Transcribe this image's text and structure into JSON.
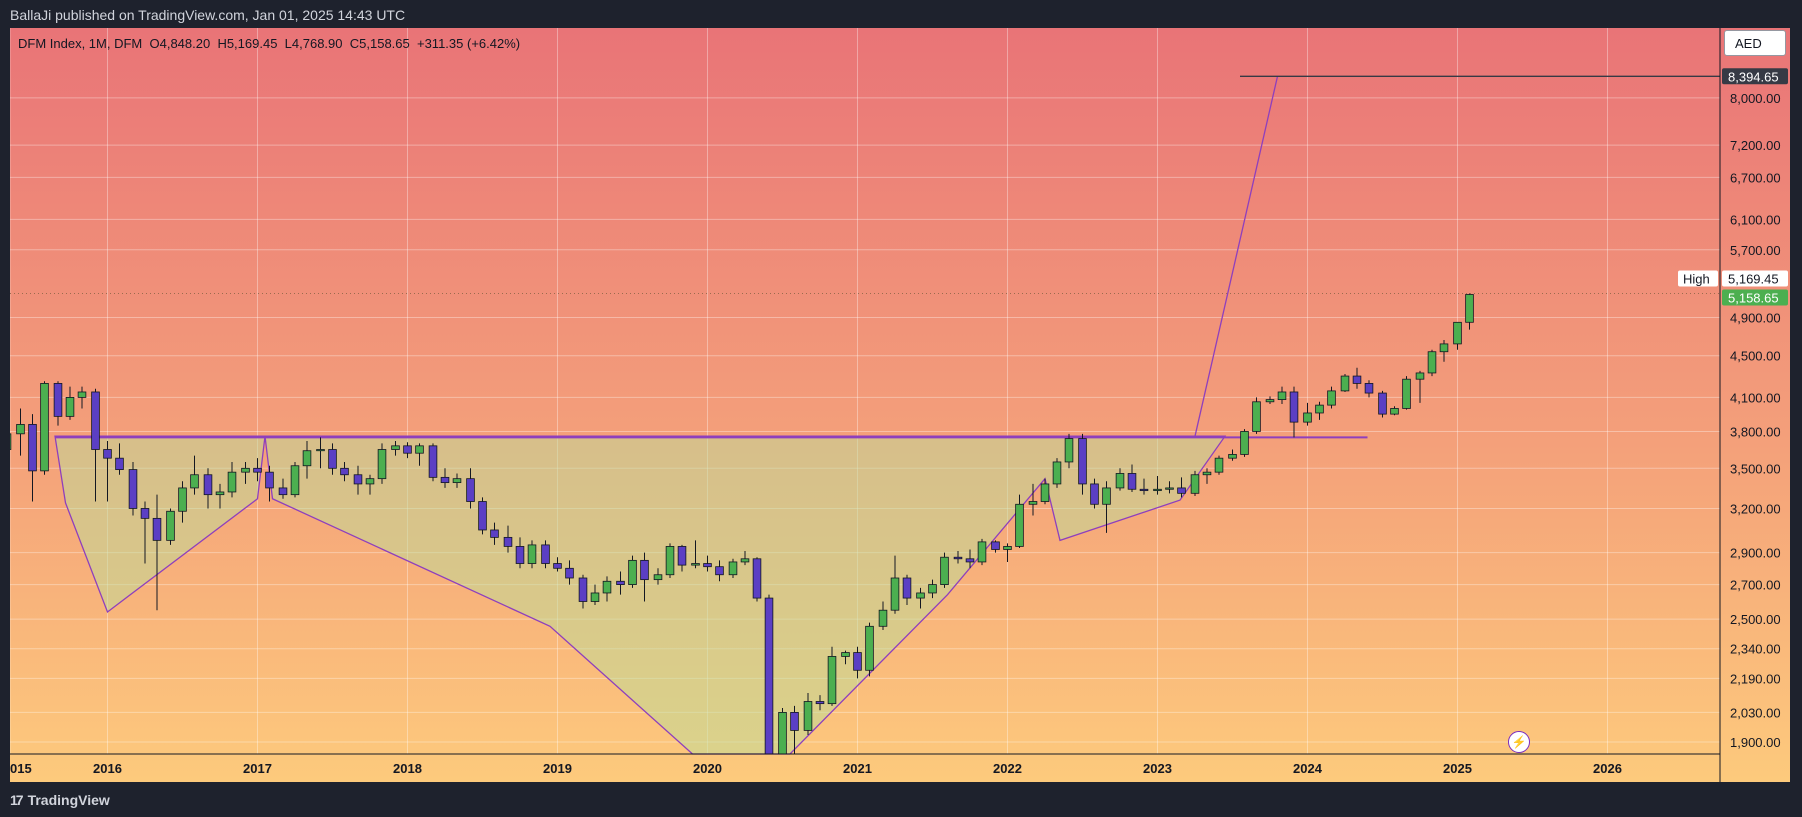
{
  "header": {
    "publisher_text": "BallaJi published on TradingView.com, Jan 01, 2025 14:43 UTC"
  },
  "legend": {
    "symbol": "DFM Index, 1M, DFM",
    "open": "O4,848.20",
    "high": "H5,169.45",
    "low": "L4,768.90",
    "close": "C5,158.65",
    "change": "+311.35 (+6.42%)"
  },
  "footer": {
    "brand": "TradingView",
    "logo_text": "17"
  },
  "currency": "AED",
  "chart_data": {
    "type": "candlestick",
    "interval": "1M",
    "x_ticks": [
      "015",
      "2016",
      "2017",
      "2018",
      "2019",
      "2020",
      "2021",
      "2022",
      "2023",
      "2024",
      "2025",
      "2026"
    ],
    "x_tick_values": [
      2015.35,
      2016,
      2017,
      2018,
      2019,
      2020,
      2021,
      2022,
      2023,
      2024,
      2025,
      2026
    ],
    "y_ticks": [
      "8,000.00",
      "7,200.00",
      "6,700.00",
      "6,100.00",
      "5,700.00",
      "4,900.00",
      "4,500.00",
      "4,100.00",
      "3,800.00",
      "3,500.00",
      "3,200.00",
      "2,900.00",
      "2,700.00",
      "2,500.00",
      "2,340.00",
      "2,190.00",
      "2,030.00",
      "1,900.00"
    ],
    "y_tick_values": [
      8000,
      7200,
      6700,
      6100,
      5700,
      4900,
      4500,
      4100,
      3800,
      3500,
      3200,
      2900,
      2700,
      2500,
      2340,
      2190,
      2030,
      1900
    ],
    "y_scale": "log",
    "y_range": [
      1850,
      9350
    ],
    "x_range": [
      2015.35,
      2026.75
    ],
    "price_tags": [
      {
        "label": "",
        "value": "8,394.65",
        "price": 8394.65,
        "bg": "#363a45",
        "fg": "#ffffff"
      },
      {
        "label": "High",
        "value": "5,169.45",
        "price": 5169.45,
        "bg": "#ffffff",
        "fg": "#131722"
      },
      {
        "label": "",
        "value": "5,158.65",
        "price": 5158.65,
        "bg": "#4caf50",
        "fg": "#ffffff"
      }
    ],
    "up_color": "#4caf50",
    "down_color": "#5b3fc4",
    "pattern": {
      "neckline_price": 3750,
      "neckline_x": [
        2015.65,
        2023.45
      ],
      "right_neckline_x": [
        2023.45,
        2024.4
      ],
      "target_price": 8394.65,
      "target_x": [
        2023.55,
        2026.75
      ],
      "fill_polygon": [
        [
          2015.65,
          3760
        ],
        [
          2015.72,
          3240
        ],
        [
          2016.0,
          2540
        ],
        [
          2017.0,
          3270
        ],
        [
          2017.05,
          3760
        ],
        [
          2017.1,
          3270
        ],
        [
          2018.95,
          2460
        ],
        [
          2019.9,
          1790
        ],
        [
          2020.55,
          1790
        ],
        [
          2021.6,
          2640
        ],
        [
          2022.25,
          3420
        ],
        [
          2022.35,
          2980
        ],
        [
          2023.15,
          3260
        ],
        [
          2023.45,
          3760
        ]
      ],
      "breakout_line": [
        [
          2023.25,
          3760
        ],
        [
          2023.8,
          8394.65
        ]
      ]
    },
    "candles": [
      {
        "t": 2015.33,
        "o": 3650,
        "h": 3950,
        "l": 3400,
        "c": 3780
      },
      {
        "t": 2015.42,
        "o": 3780,
        "h": 4000,
        "l": 3600,
        "c": 3860
      },
      {
        "t": 2015.5,
        "o": 3860,
        "h": 3950,
        "l": 3250,
        "c": 3480
      },
      {
        "t": 2015.58,
        "o": 3480,
        "h": 4250,
        "l": 3450,
        "c": 4230
      },
      {
        "t": 2015.67,
        "o": 4230,
        "h": 4250,
        "l": 3850,
        "c": 3930
      },
      {
        "t": 2015.75,
        "o": 3930,
        "h": 4200,
        "l": 3900,
        "c": 4100
      },
      {
        "t": 2015.83,
        "o": 4100,
        "h": 4200,
        "l": 4000,
        "c": 4150
      },
      {
        "t": 2015.92,
        "o": 4150,
        "h": 4180,
        "l": 3250,
        "c": 3650
      },
      {
        "t": 2016.0,
        "o": 3650,
        "h": 3720,
        "l": 3250,
        "c": 3580
      },
      {
        "t": 2016.08,
        "o": 3580,
        "h": 3700,
        "l": 3450,
        "c": 3490
      },
      {
        "t": 2016.17,
        "o": 3490,
        "h": 3550,
        "l": 3150,
        "c": 3200
      },
      {
        "t": 2016.25,
        "o": 3200,
        "h": 3250,
        "l": 2830,
        "c": 3130
      },
      {
        "t": 2016.33,
        "o": 3130,
        "h": 3300,
        "l": 2550,
        "c": 2980
      },
      {
        "t": 2016.42,
        "o": 2980,
        "h": 3200,
        "l": 2950,
        "c": 3180
      },
      {
        "t": 2016.5,
        "o": 3180,
        "h": 3400,
        "l": 3100,
        "c": 3350
      },
      {
        "t": 2016.58,
        "o": 3350,
        "h": 3600,
        "l": 3300,
        "c": 3450
      },
      {
        "t": 2016.67,
        "o": 3450,
        "h": 3500,
        "l": 3200,
        "c": 3300
      },
      {
        "t": 2016.75,
        "o": 3300,
        "h": 3380,
        "l": 3200,
        "c": 3320
      },
      {
        "t": 2016.83,
        "o": 3320,
        "h": 3550,
        "l": 3280,
        "c": 3470
      },
      {
        "t": 2016.92,
        "o": 3470,
        "h": 3550,
        "l": 3380,
        "c": 3500
      },
      {
        "t": 2017.0,
        "o": 3500,
        "h": 3580,
        "l": 3400,
        "c": 3470
      },
      {
        "t": 2017.08,
        "o": 3470,
        "h": 3520,
        "l": 3250,
        "c": 3350
      },
      {
        "t": 2017.17,
        "o": 3350,
        "h": 3420,
        "l": 3270,
        "c": 3300
      },
      {
        "t": 2017.25,
        "o": 3300,
        "h": 3550,
        "l": 3280,
        "c": 3520
      },
      {
        "t": 2017.33,
        "o": 3520,
        "h": 3720,
        "l": 3420,
        "c": 3640
      },
      {
        "t": 2017.42,
        "o": 3640,
        "h": 3750,
        "l": 3500,
        "c": 3650
      },
      {
        "t": 2017.5,
        "o": 3650,
        "h": 3700,
        "l": 3450,
        "c": 3500
      },
      {
        "t": 2017.58,
        "o": 3500,
        "h": 3550,
        "l": 3400,
        "c": 3450
      },
      {
        "t": 2017.67,
        "o": 3450,
        "h": 3520,
        "l": 3300,
        "c": 3380
      },
      {
        "t": 2017.75,
        "o": 3380,
        "h": 3450,
        "l": 3300,
        "c": 3420
      },
      {
        "t": 2017.83,
        "o": 3420,
        "h": 3700,
        "l": 3380,
        "c": 3650
      },
      {
        "t": 2017.92,
        "o": 3650,
        "h": 3720,
        "l": 3600,
        "c": 3680
      },
      {
        "t": 2018.0,
        "o": 3680,
        "h": 3710,
        "l": 3580,
        "c": 3620
      },
      {
        "t": 2018.08,
        "o": 3620,
        "h": 3700,
        "l": 3520,
        "c": 3680
      },
      {
        "t": 2018.17,
        "o": 3680,
        "h": 3700,
        "l": 3400,
        "c": 3430
      },
      {
        "t": 2018.25,
        "o": 3430,
        "h": 3500,
        "l": 3350,
        "c": 3390
      },
      {
        "t": 2018.33,
        "o": 3390,
        "h": 3460,
        "l": 3350,
        "c": 3420
      },
      {
        "t": 2018.42,
        "o": 3420,
        "h": 3500,
        "l": 3200,
        "c": 3250
      },
      {
        "t": 2018.5,
        "o": 3250,
        "h": 3280,
        "l": 3020,
        "c": 3050
      },
      {
        "t": 2018.58,
        "o": 3050,
        "h": 3100,
        "l": 2950,
        "c": 3000
      },
      {
        "t": 2018.67,
        "o": 3000,
        "h": 3080,
        "l": 2900,
        "c": 2940
      },
      {
        "t": 2018.75,
        "o": 2940,
        "h": 3000,
        "l": 2800,
        "c": 2830
      },
      {
        "t": 2018.83,
        "o": 2830,
        "h": 2980,
        "l": 2800,
        "c": 2950
      },
      {
        "t": 2018.92,
        "o": 2950,
        "h": 2980,
        "l": 2800,
        "c": 2830
      },
      {
        "t": 2019.0,
        "o": 2830,
        "h": 2870,
        "l": 2780,
        "c": 2800
      },
      {
        "t": 2019.08,
        "o": 2800,
        "h": 2850,
        "l": 2700,
        "c": 2740
      },
      {
        "t": 2019.17,
        "o": 2740,
        "h": 2760,
        "l": 2560,
        "c": 2600
      },
      {
        "t": 2019.25,
        "o": 2600,
        "h": 2700,
        "l": 2580,
        "c": 2650
      },
      {
        "t": 2019.33,
        "o": 2650,
        "h": 2750,
        "l": 2600,
        "c": 2720
      },
      {
        "t": 2019.42,
        "o": 2720,
        "h": 2780,
        "l": 2640,
        "c": 2700
      },
      {
        "t": 2019.5,
        "o": 2700,
        "h": 2880,
        "l": 2680,
        "c": 2850
      },
      {
        "t": 2019.58,
        "o": 2850,
        "h": 2900,
        "l": 2600,
        "c": 2730
      },
      {
        "t": 2019.67,
        "o": 2730,
        "h": 2800,
        "l": 2700,
        "c": 2760
      },
      {
        "t": 2019.75,
        "o": 2760,
        "h": 2960,
        "l": 2740,
        "c": 2940
      },
      {
        "t": 2019.83,
        "o": 2940,
        "h": 2950,
        "l": 2780,
        "c": 2820
      },
      {
        "t": 2019.92,
        "o": 2820,
        "h": 2980,
        "l": 2800,
        "c": 2830
      },
      {
        "t": 2020.0,
        "o": 2830,
        "h": 2880,
        "l": 2780,
        "c": 2810
      },
      {
        "t": 2020.08,
        "o": 2810,
        "h": 2850,
        "l": 2720,
        "c": 2760
      },
      {
        "t": 2020.17,
        "o": 2760,
        "h": 2860,
        "l": 2740,
        "c": 2840
      },
      {
        "t": 2020.25,
        "o": 2840,
        "h": 2910,
        "l": 2820,
        "c": 2860
      },
      {
        "t": 2020.33,
        "o": 2860,
        "h": 2870,
        "l": 2600,
        "c": 2620
      },
      {
        "t": 2020.41,
        "o": 2620,
        "h": 2640,
        "l": 1650,
        "c": 1750
      },
      {
        "t": 2020.5,
        "o": 1750,
        "h": 2050,
        "l": 1740,
        "c": 2030
      },
      {
        "t": 2020.58,
        "o": 2030,
        "h": 2060,
        "l": 1850,
        "c": 1950
      },
      {
        "t": 2020.67,
        "o": 1950,
        "h": 2120,
        "l": 1930,
        "c": 2080
      },
      {
        "t": 2020.75,
        "o": 2080,
        "h": 2110,
        "l": 2040,
        "c": 2070
      },
      {
        "t": 2020.83,
        "o": 2070,
        "h": 2350,
        "l": 2060,
        "c": 2300
      },
      {
        "t": 2020.92,
        "o": 2300,
        "h": 2330,
        "l": 2260,
        "c": 2320
      },
      {
        "t": 2021.0,
        "o": 2320,
        "h": 2350,
        "l": 2190,
        "c": 2230
      },
      {
        "t": 2021.08,
        "o": 2230,
        "h": 2480,
        "l": 2200,
        "c": 2460
      },
      {
        "t": 2021.17,
        "o": 2460,
        "h": 2600,
        "l": 2440,
        "c": 2550
      },
      {
        "t": 2021.25,
        "o": 2550,
        "h": 2880,
        "l": 2530,
        "c": 2740
      },
      {
        "t": 2021.33,
        "o": 2740,
        "h": 2760,
        "l": 2580,
        "c": 2620
      },
      {
        "t": 2021.42,
        "o": 2620,
        "h": 2680,
        "l": 2560,
        "c": 2650
      },
      {
        "t": 2021.5,
        "o": 2650,
        "h": 2730,
        "l": 2620,
        "c": 2700
      },
      {
        "t": 2021.58,
        "o": 2700,
        "h": 2900,
        "l": 2680,
        "c": 2870
      },
      {
        "t": 2021.67,
        "o": 2870,
        "h": 2910,
        "l": 2830,
        "c": 2860
      },
      {
        "t": 2021.75,
        "o": 2860,
        "h": 2920,
        "l": 2800,
        "c": 2840
      },
      {
        "t": 2021.83,
        "o": 2840,
        "h": 2990,
        "l": 2820,
        "c": 2970
      },
      {
        "t": 2021.92,
        "o": 2970,
        "h": 2980,
        "l": 2900,
        "c": 2920
      },
      {
        "t": 2022.0,
        "o": 2920,
        "h": 2960,
        "l": 2840,
        "c": 2940
      },
      {
        "t": 2022.08,
        "o": 2940,
        "h": 3300,
        "l": 2930,
        "c": 3230
      },
      {
        "t": 2022.17,
        "o": 3230,
        "h": 3380,
        "l": 3150,
        "c": 3250
      },
      {
        "t": 2022.25,
        "o": 3250,
        "h": 3420,
        "l": 3230,
        "c": 3380
      },
      {
        "t": 2022.33,
        "o": 3380,
        "h": 3580,
        "l": 3350,
        "c": 3550
      },
      {
        "t": 2022.41,
        "o": 3550,
        "h": 3780,
        "l": 3500,
        "c": 3740
      },
      {
        "t": 2022.5,
        "o": 3740,
        "h": 3780,
        "l": 3300,
        "c": 3380
      },
      {
        "t": 2022.58,
        "o": 3380,
        "h": 3420,
        "l": 3200,
        "c": 3230
      },
      {
        "t": 2022.66,
        "o": 3230,
        "h": 3400,
        "l": 3030,
        "c": 3350
      },
      {
        "t": 2022.75,
        "o": 3350,
        "h": 3500,
        "l": 3330,
        "c": 3460
      },
      {
        "t": 2022.83,
        "o": 3460,
        "h": 3530,
        "l": 3320,
        "c": 3340
      },
      {
        "t": 2022.91,
        "o": 3340,
        "h": 3420,
        "l": 3300,
        "c": 3330
      },
      {
        "t": 2023.0,
        "o": 3330,
        "h": 3440,
        "l": 3300,
        "c": 3340
      },
      {
        "t": 2023.08,
        "o": 3340,
        "h": 3400,
        "l": 3310,
        "c": 3350
      },
      {
        "t": 2023.16,
        "o": 3350,
        "h": 3430,
        "l": 3280,
        "c": 3310
      },
      {
        "t": 2023.25,
        "o": 3310,
        "h": 3480,
        "l": 3290,
        "c": 3450
      },
      {
        "t": 2023.33,
        "o": 3450,
        "h": 3500,
        "l": 3380,
        "c": 3470
      },
      {
        "t": 2023.41,
        "o": 3470,
        "h": 3600,
        "l": 3450,
        "c": 3580
      },
      {
        "t": 2023.5,
        "o": 3580,
        "h": 3650,
        "l": 3560,
        "c": 3610
      },
      {
        "t": 2023.58,
        "o": 3610,
        "h": 3820,
        "l": 3590,
        "c": 3800
      },
      {
        "t": 2023.66,
        "o": 3800,
        "h": 4100,
        "l": 3780,
        "c": 4060
      },
      {
        "t": 2023.75,
        "o": 4060,
        "h": 4110,
        "l": 4040,
        "c": 4080
      },
      {
        "t": 2023.83,
        "o": 4080,
        "h": 4200,
        "l": 4040,
        "c": 4150
      },
      {
        "t": 2023.91,
        "o": 4150,
        "h": 4200,
        "l": 3750,
        "c": 3880
      },
      {
        "t": 2024.0,
        "o": 3880,
        "h": 4050,
        "l": 3850,
        "c": 3960
      },
      {
        "t": 2024.08,
        "o": 3960,
        "h": 4060,
        "l": 3900,
        "c": 4030
      },
      {
        "t": 2024.16,
        "o": 4030,
        "h": 4200,
        "l": 4000,
        "c": 4160
      },
      {
        "t": 2024.25,
        "o": 4160,
        "h": 4320,
        "l": 4150,
        "c": 4300
      },
      {
        "t": 2024.33,
        "o": 4300,
        "h": 4380,
        "l": 4180,
        "c": 4230
      },
      {
        "t": 2024.41,
        "o": 4230,
        "h": 4260,
        "l": 4100,
        "c": 4140
      },
      {
        "t": 2024.5,
        "o": 4140,
        "h": 4160,
        "l": 3920,
        "c": 3950
      },
      {
        "t": 2024.58,
        "o": 3950,
        "h": 4020,
        "l": 3940,
        "c": 4000
      },
      {
        "t": 2024.66,
        "o": 4000,
        "h": 4300,
        "l": 3990,
        "c": 4270
      },
      {
        "t": 2024.75,
        "o": 4270,
        "h": 4350,
        "l": 4050,
        "c": 4330
      },
      {
        "t": 2024.83,
        "o": 4330,
        "h": 4560,
        "l": 4300,
        "c": 4540
      },
      {
        "t": 2024.91,
        "o": 4540,
        "h": 4660,
        "l": 4440,
        "c": 4620
      },
      {
        "t": 2025.0,
        "o": 4620,
        "h": 4850,
        "l": 4560,
        "c": 4848
      },
      {
        "t": 2025.08,
        "o": 4848.2,
        "h": 5169.45,
        "l": 4768.9,
        "c": 5158.65
      }
    ]
  }
}
